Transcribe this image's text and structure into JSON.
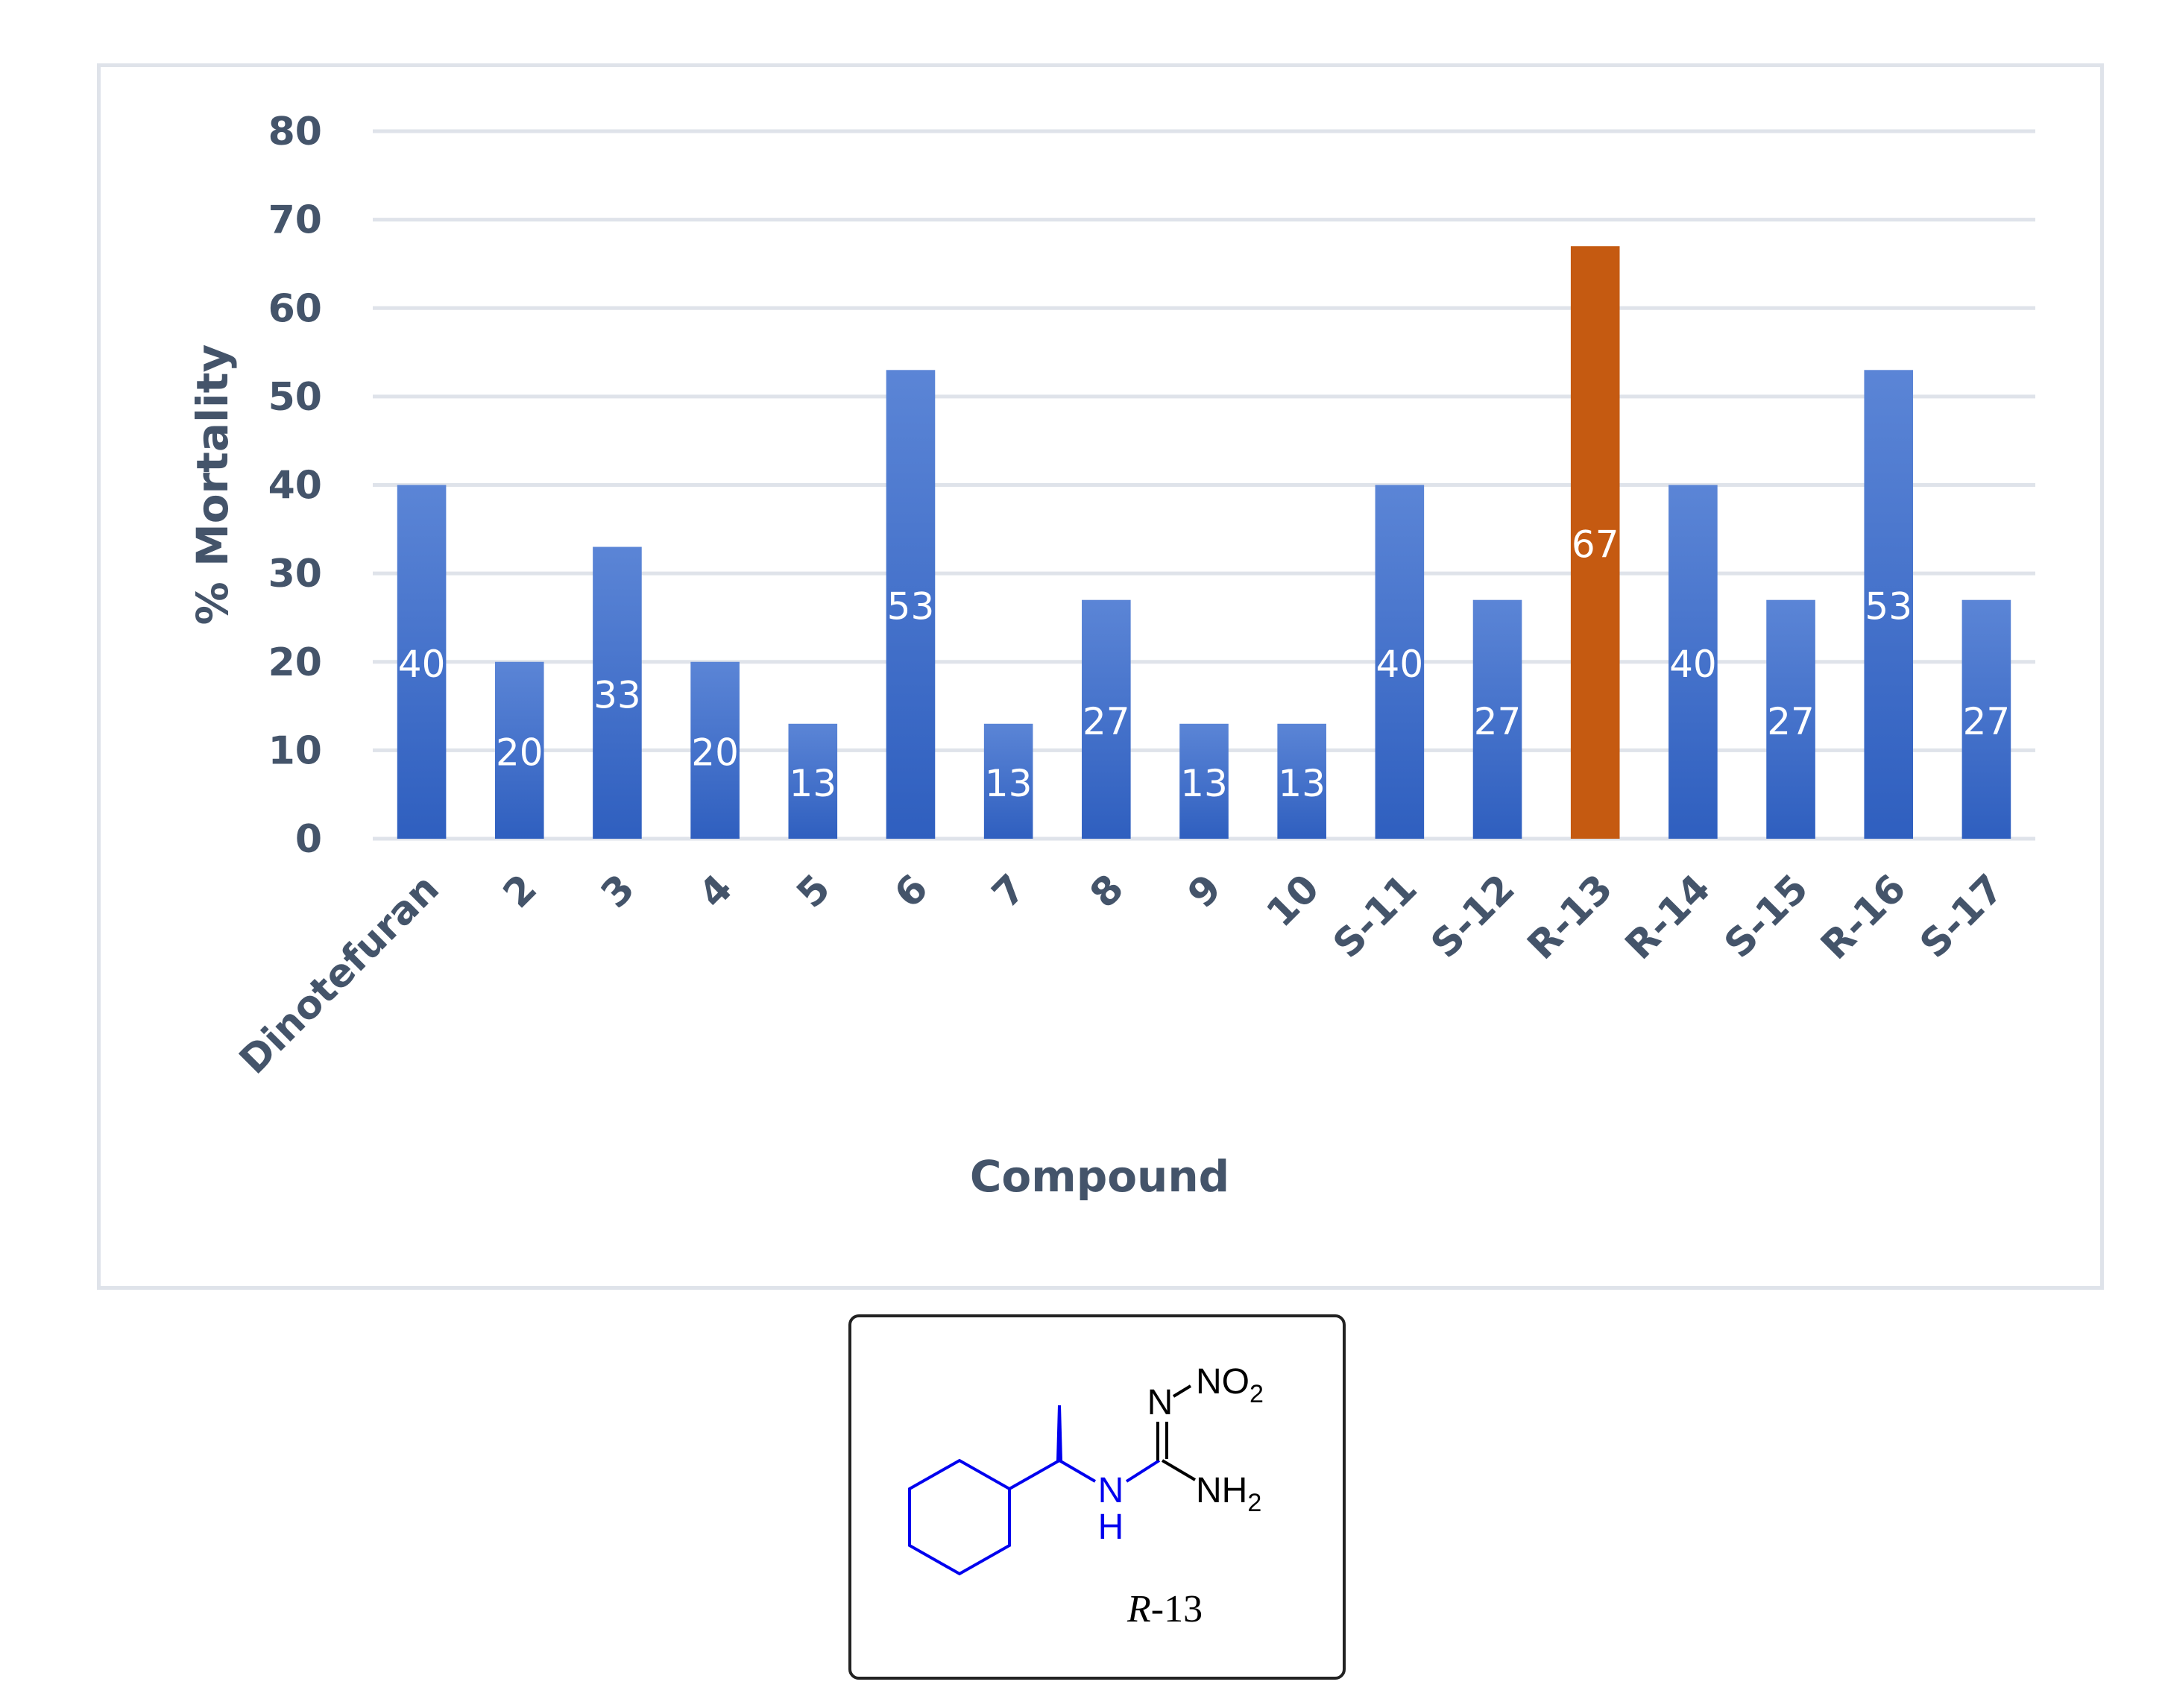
{
  "chart_data": {
    "type": "bar",
    "title": "",
    "xlabel": "Compound",
    "ylabel": "% Mortality",
    "ylim": [
      0,
      80
    ],
    "yticks": [
      0,
      10,
      20,
      30,
      40,
      50,
      60,
      70,
      80
    ],
    "grid": true,
    "categories": [
      "Dinotefuran",
      "2",
      "3",
      "4",
      "5",
      "6",
      "7",
      "8",
      "9",
      "10",
      "S-11",
      "S-12",
      "R-13",
      "R-14",
      "S-15",
      "R-16",
      "S-17"
    ],
    "values": [
      40,
      20,
      33,
      20,
      13,
      53,
      13,
      27,
      13,
      13,
      40,
      27,
      67,
      40,
      27,
      53,
      27
    ],
    "data_labels": [
      "40",
      "20",
      "33",
      "20",
      "13",
      "53",
      "13",
      "27",
      "13",
      "13",
      "40",
      "27",
      "67",
      "40",
      "27",
      "53",
      "27"
    ],
    "highlight_category": "R-13",
    "colors": {
      "bar": "#4472c4",
      "highlight": "#c55a11",
      "axis_text": "#44546a",
      "grid": "#dfe3ea"
    }
  },
  "structure": {
    "labels": {
      "n_top": "N",
      "no2_main": "NO",
      "no2_sub": "2",
      "nh_n": "N",
      "nh_h": "H",
      "nh2_main": "NH",
      "nh2_sub": "2"
    },
    "caption_prefix": "R",
    "caption_suffix": "-13",
    "colors": {
      "highlight": "#0000ee",
      "default": "#000000"
    }
  }
}
